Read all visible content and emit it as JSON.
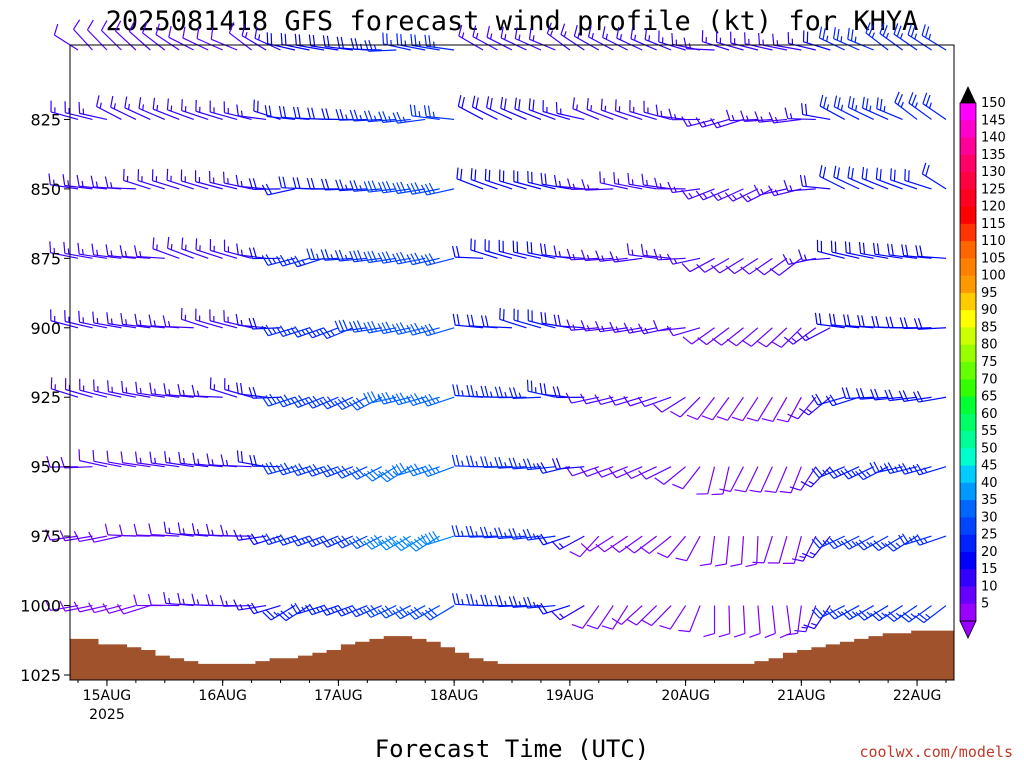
{
  "chart_data": {
    "type": "wind-barb-profile",
    "title": "2025081418 GFS forecast wind profile (kt) for KHYA",
    "xlabel": "Forecast Time (UTC)",
    "ylabel": "",
    "x_ticks": [
      {
        "label": "15AUG",
        "sublabel": "2025",
        "hour": 6
      },
      {
        "label": "16AUG",
        "sublabel": "",
        "hour": 30
      },
      {
        "label": "17AUG",
        "sublabel": "",
        "hour": 54
      },
      {
        "label": "18AUG",
        "sublabel": "",
        "hour": 78
      },
      {
        "label": "19AUG",
        "sublabel": "",
        "hour": 102
      },
      {
        "label": "20AUG",
        "sublabel": "",
        "hour": 126
      },
      {
        "label": "21AUG",
        "sublabel": "",
        "hour": 150
      },
      {
        "label": "22AUG",
        "sublabel": "",
        "hour": 174
      }
    ],
    "xlim_hours": [
      0,
      180
    ],
    "time_step_hours": 3,
    "y_ticks": [
      "825",
      "850",
      "875",
      "900",
      "925",
      "950",
      "975",
      "1000",
      "1025"
    ],
    "ylim_hpa": [
      800,
      1025
    ],
    "pressure_levels": [
      800,
      825,
      850,
      875,
      900,
      925,
      950,
      975,
      1000
    ],
    "colorbar": {
      "labels": [
        "150",
        "145",
        "140",
        "135",
        "130",
        "125",
        "120",
        "115",
        "110",
        "105",
        "100",
        "95",
        "90",
        "85",
        "80",
        "75",
        "70",
        "65",
        "60",
        "55",
        "50",
        "45",
        "40",
        "35",
        "30",
        "25",
        "20",
        "15",
        "10",
        "5"
      ],
      "colors": [
        "#ff00ff",
        "#ff00cc",
        "#ff0099",
        "#ff0066",
        "#ff0040",
        "#ff0020",
        "#ff0000",
        "#ff3300",
        "#ff6600",
        "#ff8000",
        "#ff9900",
        "#ffcc00",
        "#ffff00",
        "#ccff00",
        "#99ff00",
        "#66ff00",
        "#33ff00",
        "#00ff33",
        "#00ff66",
        "#00ff99",
        "#00ffcc",
        "#00ccff",
        "#0099ff",
        "#0066ff",
        "#0044ff",
        "#0022ff",
        "#0000ff",
        "#3300ff",
        "#6600ff",
        "#9900ff"
      ]
    },
    "terrain_color": "#a0522d",
    "surface_pressure_hpa": [
      1012,
      1012,
      1014,
      1014,
      1015,
      1016,
      1018,
      1019,
      1020,
      1021,
      1021,
      1021,
      1021,
      1020,
      1019,
      1019,
      1018,
      1017,
      1016,
      1014,
      1013,
      1012,
      1011,
      1011,
      1012,
      1013,
      1015,
      1017,
      1019,
      1020,
      1021,
      1021,
      1021,
      1021,
      1021,
      1021,
      1021,
      1021,
      1021,
      1021,
      1021,
      1021,
      1021,
      1021,
      1021,
      1021,
      1021,
      1021,
      1020,
      1019,
      1017,
      1016,
      1015,
      1014,
      1013,
      1012,
      1011,
      1010,
      1010,
      1009,
      1009,
      1009
    ],
    "segments": [
      {
        "from_hour": 0,
        "to_hour": 21,
        "dir": [
          310,
          290,
          280,
          280,
          280,
          280,
          275,
          265,
          260
        ],
        "speed": [
          12,
          15,
          15,
          14,
          15,
          14,
          12,
          10,
          8
        ]
      },
      {
        "from_hour": 21,
        "to_hour": 42,
        "dir": [
          300,
          290,
          285,
          285,
          280,
          280,
          280,
          275,
          270
        ],
        "speed": [
          12,
          15,
          15,
          14,
          14,
          15,
          15,
          14,
          14
        ]
      },
      {
        "from_hour": 42,
        "to_hour": 63,
        "dir": [
          280,
          270,
          265,
          260,
          255,
          250,
          250,
          245,
          245
        ],
        "speed": [
          20,
          22,
          22,
          25,
          26,
          28,
          28,
          26,
          24
        ]
      },
      {
        "from_hour": 63,
        "to_hour": 78,
        "dir": [
          275,
          270,
          265,
          260,
          255,
          250,
          245,
          245,
          245
        ],
        "speed": [
          25,
          27,
          30,
          30,
          32,
          35,
          36,
          38,
          30
        ]
      },
      {
        "from_hour": 84,
        "to_hour": 105,
        "dir": [
          300,
          295,
          285,
          280,
          280,
          275,
          270,
          265,
          265
        ],
        "speed": [
          14,
          18,
          20,
          20,
          22,
          24,
          26,
          26,
          24
        ]
      },
      {
        "from_hour": 105,
        "to_hour": 129,
        "dir": [
          295,
          285,
          275,
          270,
          265,
          255,
          245,
          230,
          220
        ],
        "speed": [
          15,
          15,
          14,
          14,
          13,
          12,
          10,
          8,
          8
        ]
      },
      {
        "from_hour": 129,
        "to_hour": 156,
        "dir": [
          280,
          260,
          250,
          240,
          230,
          210,
          200,
          190,
          180
        ],
        "speed": [
          14,
          14,
          13,
          12,
          10,
          8,
          8,
          8,
          8
        ]
      },
      {
        "from_hour": 156,
        "to_hour": 180,
        "dir": [
          300,
          300,
          295,
          280,
          270,
          260,
          250,
          245,
          240
        ],
        "speed": [
          25,
          24,
          22,
          20,
          20,
          22,
          24,
          26,
          26
        ]
      }
    ]
  },
  "credit": "coolwx.com/models"
}
